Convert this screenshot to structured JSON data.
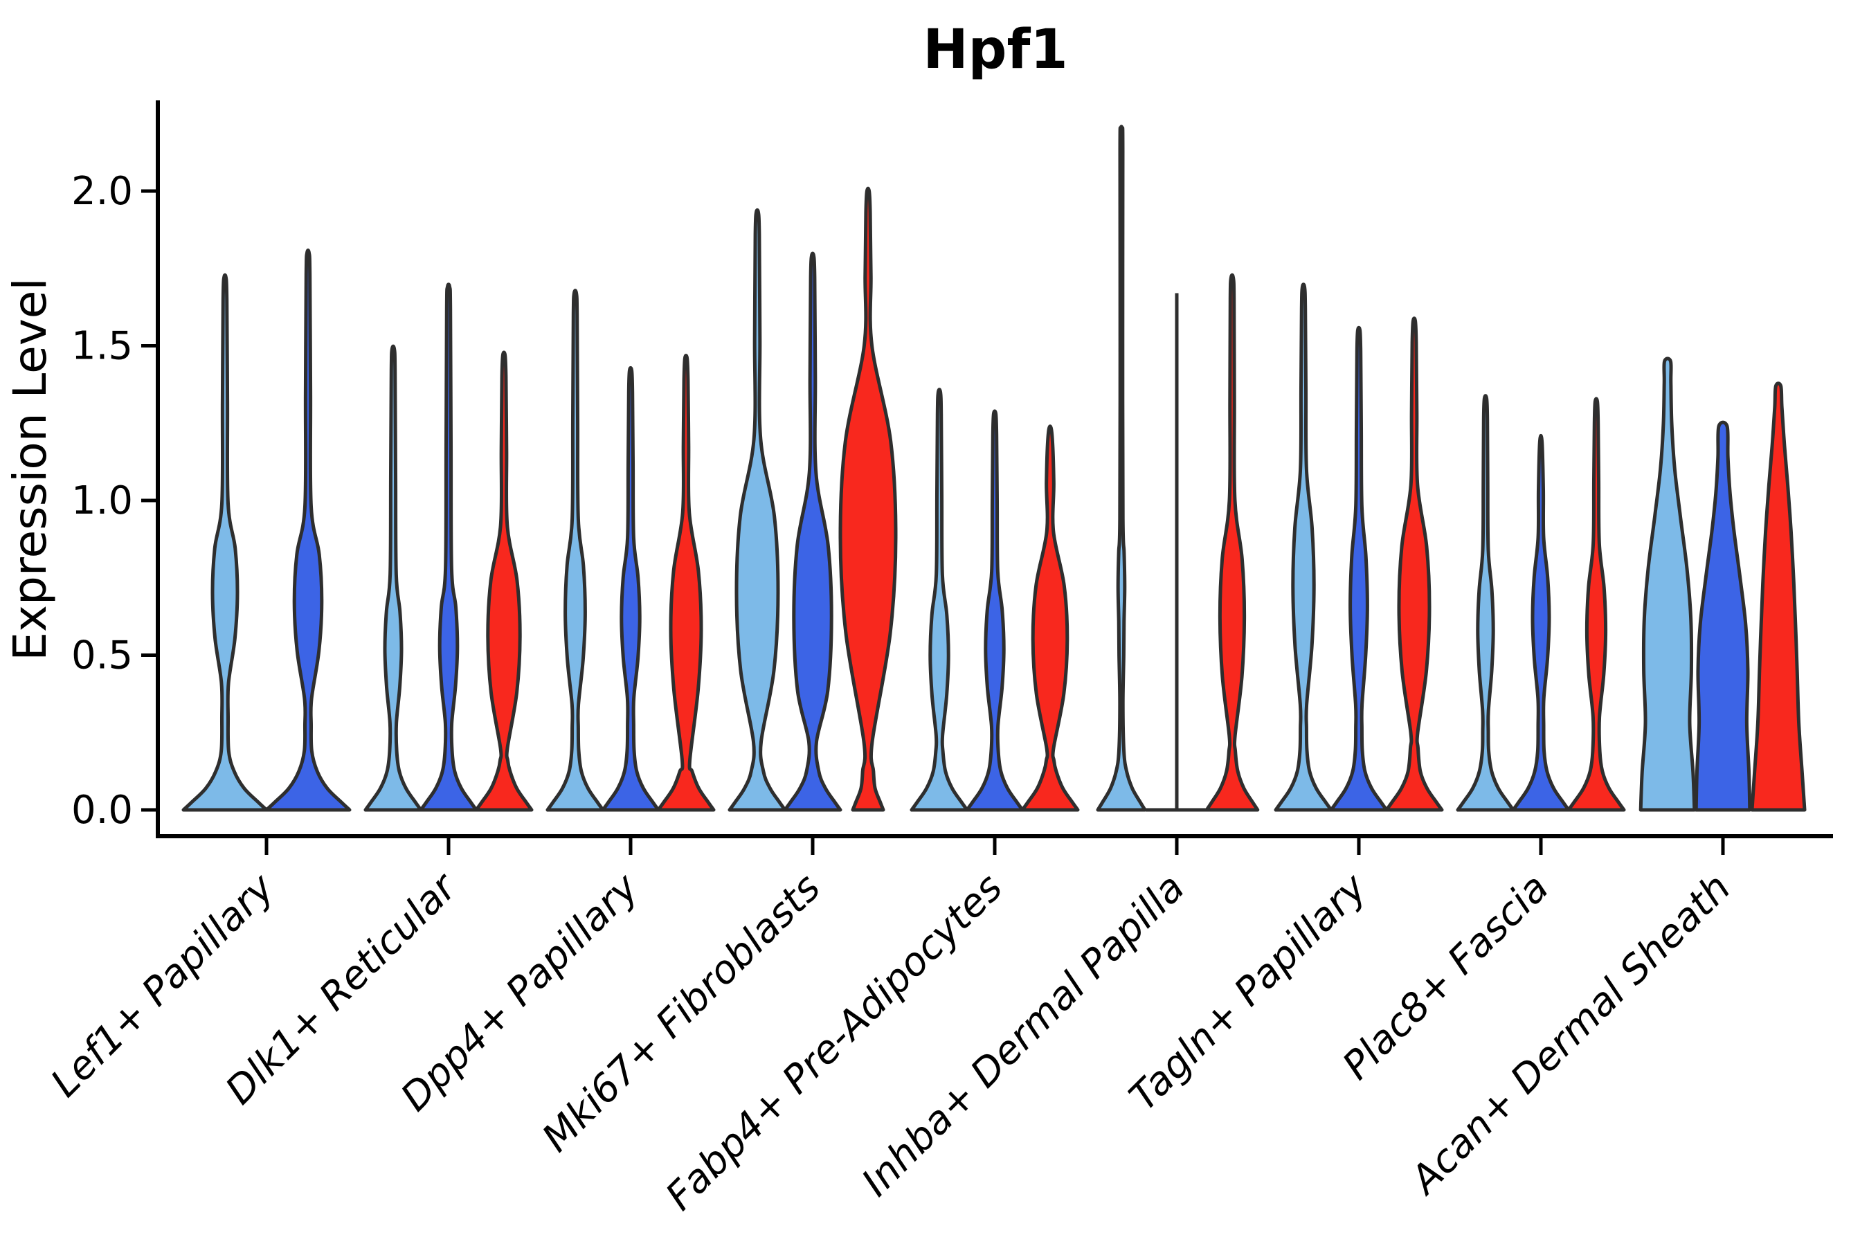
{
  "title": "Hpf1",
  "y_axis": {
    "label": "Expression Level",
    "tick_labels": [
      "0.0",
      "0.5",
      "1.0",
      "1.5",
      "2.0"
    ]
  },
  "chart_data": {
    "type": "violin",
    "title": "Hpf1",
    "xlabel": "",
    "ylabel": "Expression Level",
    "ylim": [
      0,
      2.3
    ],
    "yticks": [
      {
        "value": 0.0,
        "label": "0.0"
      },
      {
        "value": 0.5,
        "label": "0.5"
      },
      {
        "value": 1.0,
        "label": "1.0"
      },
      {
        "value": 1.5,
        "label": "1.5"
      },
      {
        "value": 2.0,
        "label": "2.0"
      }
    ],
    "grid": false,
    "legend": "none",
    "categories": [
      "Lef1+ Papillary",
      "Dlk1+ Reticular",
      "Dpp4+ Papillary",
      "Mki67+ Fibroblasts",
      "Fabp4+ Pre-Adipocytes",
      "Inhba+ Dermal Papilla",
      "Tagln+ Papillary",
      "Plac8+ Fascia",
      "Acan+ Dermal Sheath"
    ],
    "hues": [
      {
        "id": "light-blue",
        "color": "#7DBAE8"
      },
      {
        "id": "dark-blue",
        "color": "#3C64E6"
      },
      {
        "id": "red",
        "color": "#F8281E"
      }
    ],
    "edge_color": "#2E2E2E",
    "axis_color": "#000000",
    "groups": [
      {
        "category": "Lef1+ Papillary",
        "violins": [
          {
            "hue": "light-blue",
            "max": 1.72,
            "style": "spike",
            "dx": -60,
            "hw": 60,
            "params": {
              "top": 1.72,
              "vc": 0.7,
              "bh": 0.29,
              "f": 0.3,
              "stem": 0.075,
              "tip": 0.025,
              "base": 1.0
            }
          },
          {
            "hue": "dark-blue",
            "max": 1.8,
            "style": "spike",
            "dx": 60,
            "hw": 60,
            "params": {
              "top": 1.8,
              "vc": 0.67,
              "bh": 0.31,
              "f": 0.33,
              "stem": 0.075,
              "tip": 0.025,
              "base": 1.0
            }
          }
        ]
      },
      {
        "category": "Dlk1+ Reticular",
        "violins": [
          {
            "hue": "light-blue",
            "max": 1.49,
            "style": "spike",
            "dx": -80,
            "hw": 40,
            "params": {
              "top": 1.49,
              "vc": 0.52,
              "bh": 0.24,
              "f": 0.3,
              "stem": 0.11
            }
          },
          {
            "hue": "dark-blue",
            "max": 1.69,
            "style": "spike",
            "dx": 0,
            "hw": 40,
            "params": {
              "top": 1.69,
              "vc": 0.53,
              "bh": 0.25,
              "f": 0.32,
              "stem": 0.11
            }
          },
          {
            "hue": "red",
            "max": 1.47,
            "style": "spike",
            "dx": 80,
            "hw": 40,
            "params": {
              "top": 1.47,
              "vc": 0.56,
              "bh": 0.36,
              "f": 0.58,
              "stem": 0.12,
              "waist": 0.16
            }
          }
        ]
      },
      {
        "category": "Dpp4+ Papillary",
        "violins": [
          {
            "hue": "light-blue",
            "max": 1.67,
            "style": "spike",
            "dx": -80,
            "hw": 40,
            "params": {
              "top": 1.67,
              "vc": 0.64,
              "bh": 0.3,
              "f": 0.36,
              "stem": 0.11
            }
          },
          {
            "hue": "dark-blue",
            "max": 1.42,
            "style": "spike",
            "dx": 0,
            "hw": 40,
            "params": {
              "top": 1.42,
              "vc": 0.62,
              "bh": 0.26,
              "f": 0.33,
              "stem": 0.11
            }
          },
          {
            "hue": "red",
            "max": 1.46,
            "style": "spike",
            "dx": 80,
            "hw": 40,
            "params": {
              "top": 1.46,
              "vc": 0.58,
              "bh": 0.38,
              "f": 0.55,
              "stem": 0.12,
              "waist": 0.16
            }
          }
        ]
      },
      {
        "category": "Mki67+ Fibroblasts",
        "violins": [
          {
            "hue": "light-blue",
            "max": 1.93,
            "style": "spike",
            "dx": -80,
            "hw": 40,
            "params": {
              "top": 1.93,
              "vc": 0.7,
              "bh": 0.5,
              "f": 0.75,
              "stem": 0.12,
              "waist": 0.22
            }
          },
          {
            "hue": "dark-blue",
            "max": 1.79,
            "style": "spike",
            "dx": 0,
            "hw": 40,
            "params": {
              "top": 1.79,
              "vc": 0.62,
              "bh": 0.47,
              "f": 0.68,
              "stem": 0.12,
              "waist": 0.22
            }
          },
          {
            "hue": "red",
            "max": 2.0,
            "style": "spike",
            "dx": 80,
            "hw": 40,
            "params": {
              "top": 2.0,
              "vc": 0.88,
              "bh": 0.62,
              "f": 1.0,
              "stem": 0.13,
              "base": 0.55,
              "waist": 0.22
            }
          }
        ]
      },
      {
        "category": "Fabp4+ Pre-Adipocytes",
        "violins": [
          {
            "hue": "light-blue",
            "max": 1.35,
            "style": "spike",
            "dx": -80,
            "hw": 40,
            "params": {
              "top": 1.35,
              "vc": 0.5,
              "bh": 0.26,
              "f": 0.33,
              "stem": 0.11
            }
          },
          {
            "hue": "dark-blue",
            "max": 1.28,
            "style": "spike",
            "dx": 0,
            "hw": 40,
            "params": {
              "top": 1.28,
              "vc": 0.52,
              "bh": 0.25,
              "f": 0.33,
              "stem": 0.11
            }
          },
          {
            "hue": "red",
            "max": 1.22,
            "style": "spike",
            "dx": 80,
            "hw": 40,
            "params": {
              "top": 1.22,
              "vc": 0.55,
              "bh": 0.35,
              "f": 0.62,
              "stem": 0.12,
              "waist": 0.16,
              "tip": 0.06
            }
          }
        ]
      },
      {
        "category": "Inhba+ Dermal Papilla",
        "violins": [
          {
            "hue": "light-blue",
            "max": 2.2,
            "style": "spike",
            "dx": -80,
            "hw": 40,
            "params": {
              "top": 2.2,
              "vc": 0.72,
              "bh": 0.22,
              "f": 0.12,
              "stem": 0.055,
              "tip": 0.03,
              "base": 0.85
            }
          },
          {
            "hue": "dark-blue",
            "max": 1.67,
            "style": "line",
            "dx": 0,
            "hw": 40,
            "params": {
              "top": 1.67
            }
          },
          {
            "hue": "red",
            "max": 1.72,
            "style": "spike",
            "dx": 80,
            "hw": 40,
            "params": {
              "top": 1.72,
              "vc": 0.62,
              "bh": 0.38,
              "f": 0.44,
              "stem": 0.1,
              "base": 0.92
            }
          }
        ]
      },
      {
        "category": "Tagln+ Papillary",
        "violins": [
          {
            "hue": "light-blue",
            "max": 1.69,
            "style": "spike",
            "dx": -80,
            "hw": 40,
            "params": {
              "top": 1.69,
              "vc": 0.72,
              "bh": 0.38,
              "f": 0.38,
              "stem": 0.11
            }
          },
          {
            "hue": "dark-blue",
            "max": 1.55,
            "style": "spike",
            "dx": 0,
            "hw": 40,
            "params": {
              "top": 1.55,
              "vc": 0.66,
              "bh": 0.32,
              "f": 0.31,
              "stem": 0.11
            }
          },
          {
            "hue": "red",
            "max": 1.58,
            "style": "spike",
            "dx": 80,
            "hw": 40,
            "params": {
              "top": 1.58,
              "vc": 0.65,
              "bh": 0.4,
              "f": 0.55,
              "stem": 0.12,
              "waist": 0.2
            }
          }
        ]
      },
      {
        "category": "Plac8+ Fascia",
        "violins": [
          {
            "hue": "light-blue",
            "max": 1.33,
            "style": "spike",
            "dx": -80,
            "hw": 40,
            "params": {
              "top": 1.33,
              "vc": 0.58,
              "bh": 0.26,
              "f": 0.28,
              "stem": 0.1
            }
          },
          {
            "hue": "dark-blue",
            "max": 1.19,
            "style": "spike",
            "dx": 0,
            "hw": 40,
            "params": {
              "top": 1.19,
              "vc": 0.62,
              "bh": 0.26,
              "f": 0.3,
              "stem": 0.1
            }
          },
          {
            "hue": "red",
            "max": 1.32,
            "style": "spike",
            "dx": 80,
            "hw": 40,
            "params": {
              "top": 1.32,
              "vc": 0.58,
              "bh": 0.28,
              "f": 0.34,
              "stem": 0.11
            }
          }
        ]
      },
      {
        "category": "Acan+ Dermal Sheath",
        "violins": [
          {
            "hue": "light-blue",
            "max": 1.45,
            "style": "blunt",
            "dx": -80,
            "hw": 40,
            "profile": [
              [
                0,
                0.97
              ],
              [
                0.12,
                0.92
              ],
              [
                0.28,
                0.8
              ],
              [
                0.45,
                0.86
              ],
              [
                0.62,
                0.84
              ],
              [
                0.78,
                0.7
              ],
              [
                0.95,
                0.46
              ],
              [
                1.1,
                0.26
              ],
              [
                1.25,
                0.15
              ],
              [
                1.38,
                0.12
              ],
              [
                1.45,
                0.11
              ]
            ]
          },
          {
            "hue": "dark-blue",
            "max": 1.24,
            "style": "blunt",
            "dx": 0,
            "hw": 40,
            "profile": [
              [
                0,
                0.97
              ],
              [
                0.12,
                0.94
              ],
              [
                0.28,
                0.86
              ],
              [
                0.45,
                0.9
              ],
              [
                0.6,
                0.82
              ],
              [
                0.75,
                0.62
              ],
              [
                0.9,
                0.4
              ],
              [
                1.02,
                0.26
              ],
              [
                1.14,
                0.18
              ],
              [
                1.24,
                0.15
              ]
            ]
          },
          {
            "hue": "red",
            "max": 1.37,
            "style": "blunt",
            "dx": 80,
            "hw": 40,
            "profile": [
              [
                0,
                0.95
              ],
              [
                0.12,
                0.86
              ],
              [
                0.28,
                0.74
              ],
              [
                0.45,
                0.68
              ],
              [
                0.6,
                0.62
              ],
              [
                0.75,
                0.55
              ],
              [
                0.9,
                0.46
              ],
              [
                1.05,
                0.34
              ],
              [
                1.18,
                0.22
              ],
              [
                1.3,
                0.13
              ],
              [
                1.37,
                0.09
              ]
            ]
          }
        ]
      }
    ]
  }
}
